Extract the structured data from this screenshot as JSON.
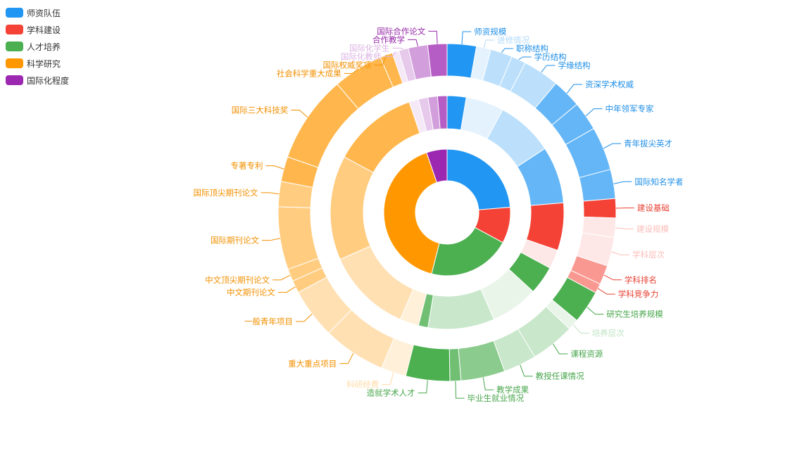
{
  "chart_data": {
    "type": "sunburst",
    "title": "",
    "categories": [
      {
        "name": "师资队伍",
        "color": "#2196F3",
        "value": 18,
        "groups": [
          {
            "value": 2,
            "alpha": 1.0,
            "items": [
              {
                "name": "师资规模",
                "value": 2
              }
            ]
          },
          {
            "value": 4,
            "alpha": 0.12,
            "items": [
              {
                "name": "进修情况",
                "value": 1
              }
            ]
          },
          {
            "value": 6,
            "alpha": 0.3,
            "items": [
              {
                "name": "职称结构",
                "value": 1.5
              },
              {
                "name": "学历结构",
                "value": 1
              },
              {
                "name": "学缘结构",
                "value": 2.5
              }
            ]
          },
          {
            "value": 6,
            "alpha": 0.7,
            "items": [
              {
                "name": "资深学术权威",
                "value": 2
              },
              {
                "name": "中年领军专家",
                "value": 2
              },
              {
                "name": "青年拔尖英才",
                "value": 3
              },
              {
                "name": "国际知名学者",
                "value": 2
              }
            ]
          }
        ]
      },
      {
        "name": "学科建设",
        "color": "#F44336",
        "value": 7,
        "groups": [
          {
            "value": 5,
            "alpha": 1.0,
            "items": [
              {
                "name": "建设基础",
                "value": 2
              }
            ]
          },
          {
            "value": 2,
            "alpha": 0.12,
            "items": [
              {
                "name": "建设规模",
                "value": 2
              },
              {
                "name": "学科层次",
                "value": 3
              }
            ]
          },
          {
            "value": 0,
            "alpha": 0.55,
            "items": [
              {
                "name": "学科排名",
                "value": 2
              },
              {
                "name": "学科竞争力",
                "value": 1
              }
            ]
          }
        ]
      },
      {
        "name": "人才培养",
        "color": "#4CAF50",
        "value": 16,
        "groups": [
          {
            "value": 3,
            "alpha": 1.0,
            "items": [
              {
                "name": "研究生培养规模",
                "value": 3
              }
            ]
          },
          {
            "value": 5,
            "alpha": 0.12,
            "items": [
              {
                "name": "培养层次",
                "value": 1
              }
            ]
          },
          {
            "value": 7,
            "alpha": 0.3,
            "items": [
              {
                "name": "课程资源",
                "value": 4
              },
              {
                "name": "教授任课情况",
                "value": 3
              }
            ]
          },
          {
            "value": 0,
            "alpha": 0.65,
            "items": [
              {
                "name": "教学成果",
                "value": 4
              }
            ]
          },
          {
            "value": 1,
            "alpha": 0.8,
            "items": [
              {
                "name": "毕业生就业情况",
                "value": 1
              }
            ]
          },
          {
            "value": 0,
            "alpha": 1.0,
            "items": [
              {
                "name": "造就学术人才",
                "value": 4
              }
            ]
          }
        ]
      },
      {
        "name": "科学研究",
        "color": "#FF9800",
        "value": 31,
        "groups": [
          {
            "value": 2,
            "alpha": 0.15,
            "items": [
              {
                "name": "科研经费",
                "value": 2
              }
            ]
          },
          {
            "value": 9,
            "alpha": 0.3,
            "items": [
              {
                "name": "重大重点项目",
                "value": 5
              },
              {
                "name": "一般青年项目",
                "value": 4
              }
            ]
          },
          {
            "value": 11,
            "alpha": 0.5,
            "items": [
              {
                "name": "中文期刊论文",
                "value": 1
              },
              {
                "name": "中文顶尖期刊论文",
                "value": 1
              },
              {
                "name": "国际期刊论文",
                "value": 5
              },
              {
                "name": "国际顶尖期刊论文",
                "value": 2
              }
            ]
          },
          {
            "value": 9,
            "alpha": 0.7,
            "items": [
              {
                "name": "专著专利",
                "value": 2
              },
              {
                "name": "国际三大科技奖",
                "value": 7
              },
              {
                "name": "社会科学重大成果",
                "value": 4
              },
              {
                "name": "国际权威奖项",
                "value": 1
              }
            ]
          }
        ]
      },
      {
        "name": "国际化程度",
        "color": "#9C27B0",
        "value": 4,
        "groups": [
          {
            "value": 1,
            "alpha": 0.1,
            "items": [
              {
                "name": "国际化教师",
                "value": 0.7
              }
            ]
          },
          {
            "value": 1,
            "alpha": 0.25,
            "items": [
              {
                "name": "国际化学生",
                "value": 1
              }
            ]
          },
          {
            "value": 1,
            "alpha": 0.45,
            "items": [
              {
                "name": "合作教学",
                "value": 2
              }
            ]
          },
          {
            "value": 1,
            "alpha": 0.75,
            "items": [
              {
                "name": "国际合作论文",
                "value": 2
              }
            ]
          }
        ]
      }
    ]
  }
}
